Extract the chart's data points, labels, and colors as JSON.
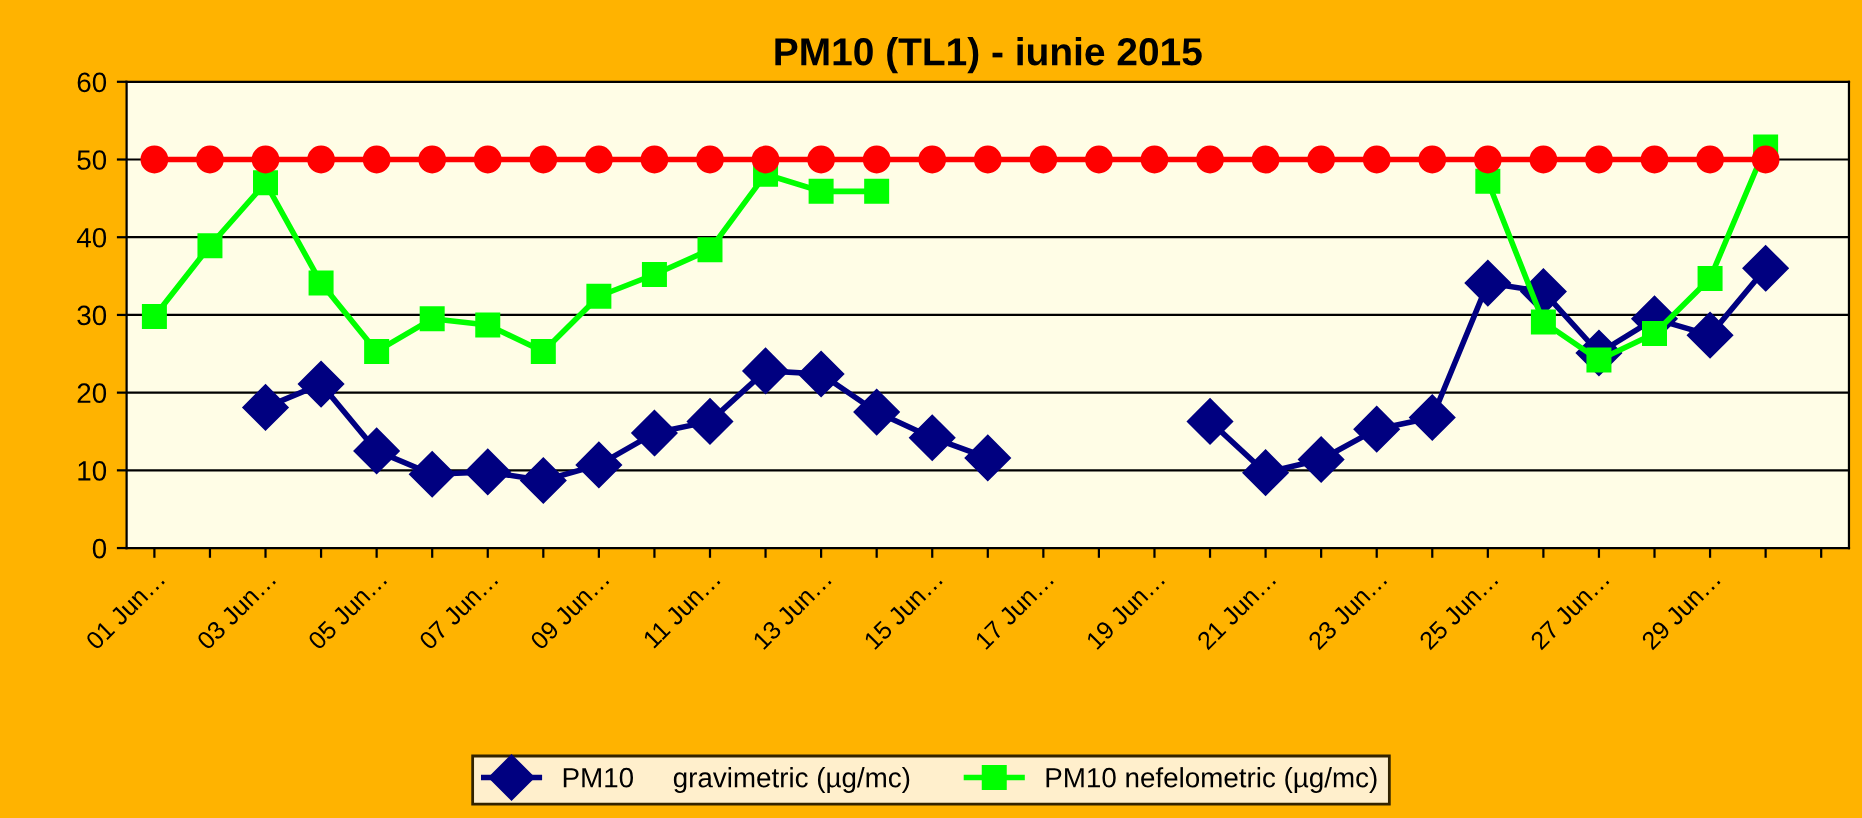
{
  "chart_data": {
    "type": "line",
    "title": "PM10 (TL1) - iunie 2015",
    "categories": [
      "01 Jun…",
      null,
      "03 Jun…",
      null,
      "05 Jun…",
      null,
      "07 Jun…",
      null,
      "09 Jun…",
      null,
      "11 Jun…",
      null,
      "13 Jun…",
      null,
      "15 Jun…",
      null,
      "17 Jun…",
      null,
      "19 Jun…",
      null,
      "21 Jun…",
      null,
      "23 Jun…",
      null,
      "25 Jun…",
      null,
      "27 Jun…",
      null,
      "29 Jun…",
      null,
      null
    ],
    "series": [
      {
        "name": "PM10     gravimetric (µg/mc)",
        "color": "#000080",
        "marker": "diamond",
        "values": [
          null,
          null,
          18.1,
          21.1,
          12.5,
          9.5,
          9.8,
          8.7,
          10.7,
          14.8,
          16.3,
          22.8,
          22.4,
          17.5,
          14.2,
          11.6,
          null,
          null,
          null,
          16.3,
          9.7,
          11.4,
          15.3,
          16.8,
          34.1,
          33.0,
          25.1,
          29.5,
          27.4,
          36.0,
          null
        ]
      },
      {
        "name": "PM10 nefelometric (µg/mc)",
        "color": "#00ff00",
        "marker": "square",
        "values": [
          29.8,
          38.9,
          47.0,
          34.1,
          25.3,
          29.5,
          28.7,
          25.3,
          32.4,
          35.2,
          38.4,
          48.1,
          45.9,
          45.9,
          null,
          null,
          null,
          null,
          null,
          null,
          null,
          null,
          null,
          null,
          47.2,
          29.1,
          24.2,
          27.6,
          34.7,
          51.6,
          null
        ]
      },
      {
        "color": "#ff0000",
        "marker": "circle",
        "values": [
          50,
          50,
          50,
          50,
          50,
          50,
          50,
          50,
          50,
          50,
          50,
          50,
          50,
          50,
          50,
          50,
          50,
          50,
          50,
          50,
          50,
          50,
          50,
          50,
          50,
          50,
          50,
          50,
          50,
          50,
          null
        ]
      }
    ],
    "ylim": [
      0,
      60
    ],
    "yticks": [
      0,
      10,
      20,
      30,
      40,
      50,
      60
    ],
    "grid": "y",
    "legend": "bottom",
    "line_style": "solid"
  }
}
